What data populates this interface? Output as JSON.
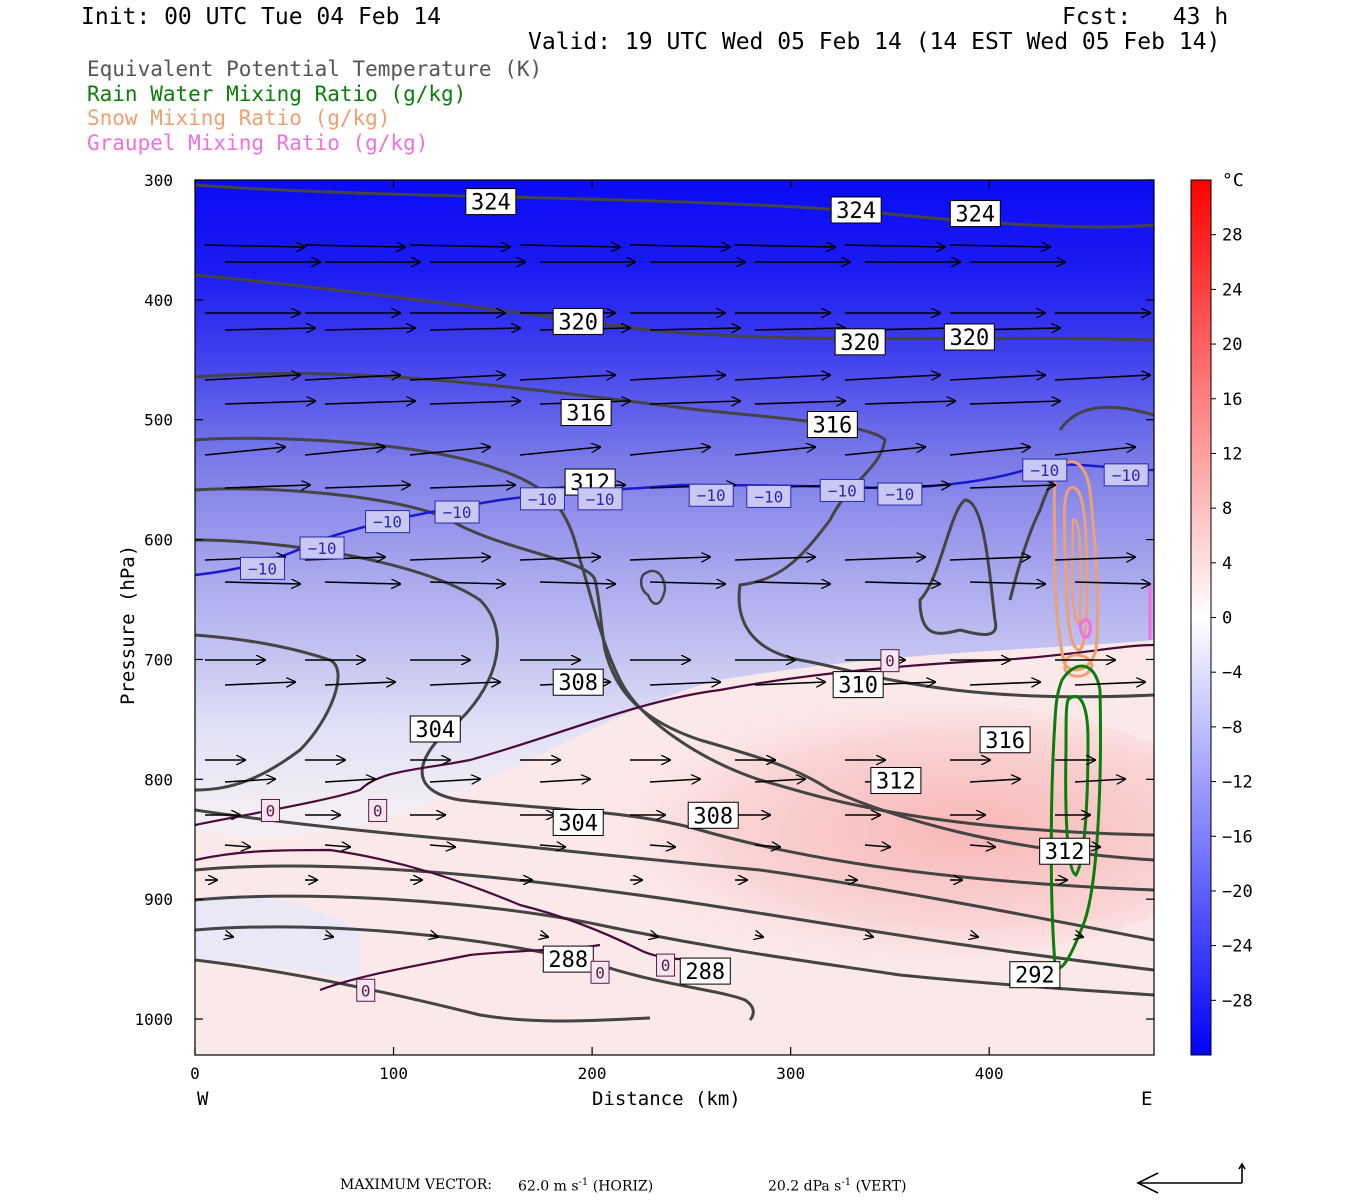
{
  "header": {
    "init": "Init: 00 UTC Tue 04 Feb 14",
    "fcst": "Fcst:   43 h",
    "valid": "Valid: 19 UTC Wed 05 Feb 14 (14 EST Wed 05 Feb 14)"
  },
  "legend": [
    {
      "text": "Equivalent Potential Temperature (K)",
      "color": "#555555"
    },
    {
      "text": "Rain Water Mixing Ratio (g/kg)",
      "color": "#0a7d0a"
    },
    {
      "text": "Snow Mixing Ratio (g/kg)",
      "color": "#f0a070"
    },
    {
      "text": "Graupel Mixing Ratio (g/kg)",
      "color": "#f070e0"
    }
  ],
  "axes": {
    "ylabel": "Pressure (hPa)",
    "xlabel": "Distance (km)",
    "west": "W",
    "east": "E",
    "unit": "°C"
  },
  "footer": {
    "label": "MAXIMUM VECTOR:",
    "horiz_value": "62.0 m s",
    "horiz_exp": "-1",
    "horiz_tag": "(HORIZ)",
    "vert_value": "20.2 dPa s",
    "vert_exp": "-1",
    "vert_tag": "(VERT)"
  },
  "chart_data": {
    "type": "heatmap",
    "description_fields": "cross-section of temperature (shaded) with theta-e contours",
    "x": {
      "ticks": [
        0,
        100,
        200,
        300,
        400
      ],
      "range": [
        0,
        483
      ]
    },
    "y": {
      "ticks": [
        300,
        400,
        500,
        600,
        700,
        800,
        900,
        1000
      ],
      "range": [
        1030,
        300
      ],
      "reversed": true
    },
    "colorbar": {
      "ticks": [
        28,
        24,
        20,
        16,
        12,
        8,
        4,
        0,
        -4,
        -8,
        -12,
        -16,
        -20,
        -24,
        -28
      ],
      "range": [
        -32,
        32
      ],
      "colors": {
        "cold": "#0000ff",
        "neutral": "#ffffff",
        "warm": "#ff0000"
      }
    },
    "theta_e_labels": [
      {
        "text": "324",
        "x": 149,
        "p": 318
      },
      {
        "text": "324",
        "x": 333,
        "p": 325
      },
      {
        "text": "324",
        "x": 393,
        "p": 328
      },
      {
        "text": "320",
        "x": 193,
        "p": 418
      },
      {
        "text": "320",
        "x": 335,
        "p": 435
      },
      {
        "text": "320",
        "x": 390,
        "p": 431
      },
      {
        "text": "316",
        "x": 197,
        "p": 494
      },
      {
        "text": "316",
        "x": 321,
        "p": 504
      },
      {
        "text": "312",
        "x": 199,
        "p": 552
      },
      {
        "text": "310",
        "x": 334,
        "p": 721
      },
      {
        "text": "308",
        "x": 193,
        "p": 719
      },
      {
        "text": "304",
        "x": 121,
        "p": 758
      },
      {
        "text": "316",
        "x": 408,
        "p": 767
      },
      {
        "text": "312",
        "x": 353,
        "p": 801
      },
      {
        "text": "308",
        "x": 261,
        "p": 830
      },
      {
        "text": "304",
        "x": 193,
        "p": 836
      },
      {
        "text": "312",
        "x": 438,
        "p": 860
      },
      {
        "text": "288",
        "x": 188,
        "p": 950
      },
      {
        "text": "288",
        "x": 257,
        "p": 960
      },
      {
        "text": "292",
        "x": 423,
        "p": 963
      }
    ],
    "temp_labels": [
      {
        "text": "−10",
        "x": 34,
        "p": 624
      },
      {
        "text": "−10",
        "x": 64,
        "p": 607
      },
      {
        "text": "−10",
        "x": 97,
        "p": 585
      },
      {
        "text": "−10",
        "x": 132,
        "p": 577
      },
      {
        "text": "−10",
        "x": 175,
        "p": 566
      },
      {
        "text": "−10",
        "x": 204,
        "p": 566
      },
      {
        "text": "−10",
        "x": 260,
        "p": 563
      },
      {
        "text": "−10",
        "x": 289,
        "p": 564
      },
      {
        "text": "−10",
        "x": 326,
        "p": 559
      },
      {
        "text": "−10",
        "x": 355,
        "p": 562
      },
      {
        "text": "−10",
        "x": 428,
        "p": 542
      },
      {
        "text": "−10",
        "x": 469,
        "p": 546
      },
      {
        "text": "0",
        "x": 38,
        "p": 826
      },
      {
        "text": "0",
        "x": 92,
        "p": 826
      },
      {
        "text": "0",
        "x": 350,
        "p": 701
      },
      {
        "text": "0",
        "x": 204,
        "p": 961
      },
      {
        "text": "0",
        "x": 237,
        "p": 955
      },
      {
        "text": "0",
        "x": 86,
        "p": 976
      }
    ]
  }
}
